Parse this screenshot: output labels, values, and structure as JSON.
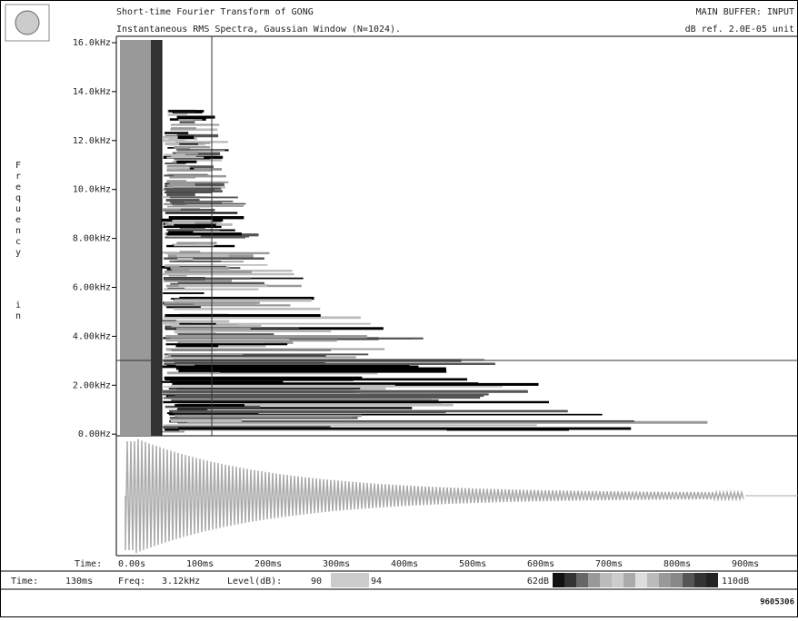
{
  "header": {
    "title": "Short-time Fourier Transform of  GONG",
    "subtitle": "Instantaneous RMS Spectra, Gaussian Window (N=1024).",
    "buffer": "MAIN BUFFER: INPUT",
    "reference": "dB ref. 2.0E-05 unit"
  },
  "y_axis": {
    "label_letters": [
      "F",
      "r",
      "e",
      "q",
      "u",
      "e",
      "n",
      "c",
      "y"
    ],
    "unit_letters": [
      "i",
      "n"
    ],
    "ticks": [
      "16.0kHz",
      "14.0kHz",
      "12.0kHz",
      "10.0kHz",
      "8.00kHz",
      "6.00kHz",
      "4.00kHz",
      "2.00kHz",
      "0.00Hz"
    ]
  },
  "x_axis": {
    "label": "Time:",
    "ticks": [
      "0.00s",
      "100ms",
      "200ms",
      "300ms",
      "400ms",
      "500ms",
      "600ms",
      "700ms",
      "800ms",
      "900ms"
    ]
  },
  "status": {
    "time_label": "Time:",
    "time": "130ms",
    "freq_label": "Freq:",
    "freq": "3.12kHz",
    "level_label": "Level(dB):",
    "level_low": "90",
    "level_high": "94",
    "scale_min": "62dB",
    "scale_max": "110dB"
  },
  "figure_id": "9605306"
}
